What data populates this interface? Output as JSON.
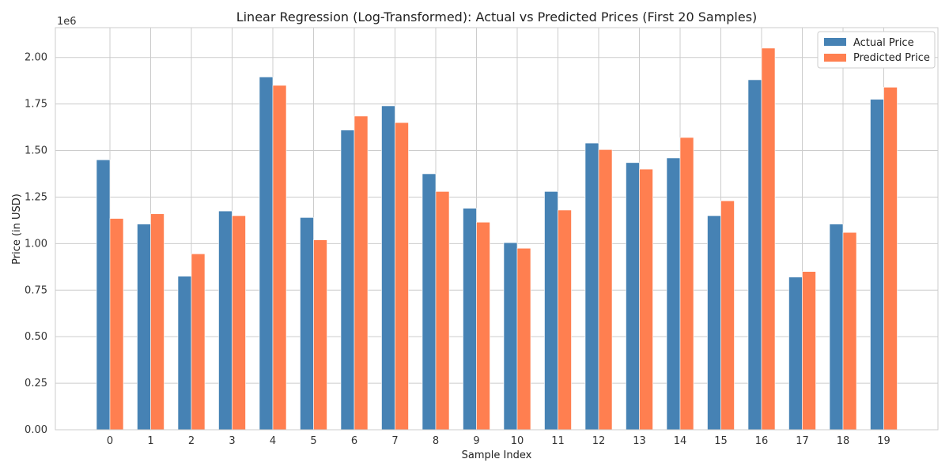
{
  "chart_data": {
    "type": "bar",
    "title": "Linear Regression (Log-Transformed): Actual vs Predicted Prices (First 20 Samples)",
    "xlabel": "Sample Index",
    "ylabel": "Price (in USD)",
    "y_multiplier_label": "1e6",
    "categories": [
      "0",
      "1",
      "2",
      "3",
      "4",
      "5",
      "6",
      "7",
      "8",
      "9",
      "10",
      "11",
      "12",
      "13",
      "14",
      "15",
      "16",
      "17",
      "18",
      "19"
    ],
    "ylim": [
      0,
      2.16
    ],
    "yticks": [
      "0.00",
      "0.25",
      "0.50",
      "0.75",
      "1.00",
      "1.25",
      "1.50",
      "1.75",
      "2.00"
    ],
    "grid": true,
    "legend_position": "top-right",
    "series": [
      {
        "name": "Actual Price",
        "color": "#4682b4",
        "values": [
          1.45,
          1.105,
          0.825,
          1.175,
          1.895,
          1.14,
          1.61,
          1.74,
          1.375,
          1.19,
          1.005,
          1.28,
          1.54,
          1.435,
          1.46,
          1.15,
          1.88,
          0.82,
          1.105,
          1.775
        ]
      },
      {
        "name": "Predicted Price",
        "color": "#ff7f50",
        "values": [
          1.135,
          1.16,
          0.945,
          1.15,
          1.85,
          1.02,
          1.685,
          1.65,
          1.28,
          1.115,
          0.975,
          1.18,
          1.505,
          1.4,
          1.57,
          1.23,
          2.05,
          0.85,
          1.06,
          1.84
        ]
      }
    ]
  }
}
